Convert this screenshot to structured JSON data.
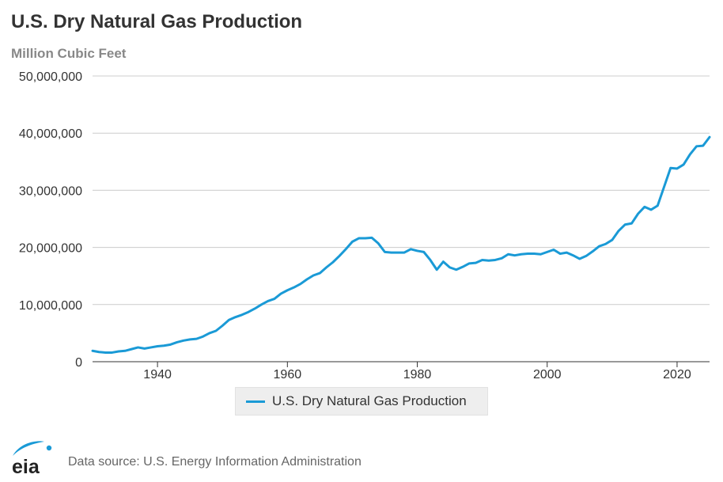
{
  "title": "U.S. Dry Natural Gas Production",
  "subtitle": "Million Cubic Feet",
  "source_text": "Data source: U.S. Energy Information Administration",
  "logo_text": "eia",
  "colors": {
    "series": "#1a9ad6",
    "grid": "#cccccc",
    "axis": "#333333",
    "logo": "#1a9ad6"
  },
  "chart_data": {
    "type": "line",
    "title": "U.S. Dry Natural Gas Production",
    "ylabel": "Million Cubic Feet",
    "xlim": [
      1930,
      2025
    ],
    "ylim": [
      0,
      50000000
    ],
    "yticks": [
      0,
      10000000,
      20000000,
      30000000,
      40000000,
      50000000
    ],
    "ytick_labels": [
      "0",
      "10,000,000",
      "20,000,000",
      "30,000,000",
      "40,000,000",
      "50,000,000"
    ],
    "xticks": [
      1940,
      1960,
      1980,
      2000,
      2020
    ],
    "xtick_labels": [
      "1940",
      "1960",
      "1980",
      "2000",
      "2020"
    ],
    "grid": true,
    "legend_position": "bottom-center",
    "series": [
      {
        "name": "U.S. Dry Natural Gas Production",
        "x": [
          1930,
          1931,
          1932,
          1933,
          1934,
          1935,
          1936,
          1937,
          1938,
          1939,
          1940,
          1941,
          1942,
          1943,
          1944,
          1945,
          1946,
          1947,
          1948,
          1949,
          1950,
          1951,
          1952,
          1953,
          1954,
          1955,
          1956,
          1957,
          1958,
          1959,
          1960,
          1961,
          1962,
          1963,
          1964,
          1965,
          1966,
          1967,
          1968,
          1969,
          1970,
          1971,
          1972,
          1973,
          1974,
          1975,
          1976,
          1977,
          1978,
          1979,
          1980,
          1981,
          1982,
          1983,
          1984,
          1985,
          1986,
          1987,
          1988,
          1989,
          1990,
          1991,
          1992,
          1993,
          1994,
          1995,
          1996,
          1997,
          1998,
          1999,
          2000,
          2001,
          2002,
          2003,
          2004,
          2005,
          2006,
          2007,
          2008,
          2009,
          2010,
          2011,
          2012,
          2013,
          2014,
          2015,
          2016,
          2017,
          2018,
          2019,
          2020,
          2021,
          2022,
          2023,
          2024,
          2025
        ],
        "values": [
          1900000,
          1700000,
          1600000,
          1600000,
          1800000,
          1900000,
          2200000,
          2500000,
          2300000,
          2500000,
          2700000,
          2800000,
          3000000,
          3400000,
          3700000,
          3900000,
          4000000,
          4400000,
          5000000,
          5400000,
          6300000,
          7300000,
          7800000,
          8200000,
          8700000,
          9300000,
          10000000,
          10600000,
          11000000,
          11900000,
          12500000,
          13000000,
          13600000,
          14400000,
          15100000,
          15500000,
          16500000,
          17400000,
          18500000,
          19700000,
          21000000,
          21600000,
          21600000,
          21700000,
          20700000,
          19200000,
          19100000,
          19100000,
          19100000,
          19700000,
          19400000,
          19200000,
          17800000,
          16100000,
          17500000,
          16500000,
          16100000,
          16600000,
          17200000,
          17300000,
          17800000,
          17700000,
          17800000,
          18100000,
          18800000,
          18600000,
          18800000,
          18900000,
          18900000,
          18800000,
          19200000,
          19600000,
          18900000,
          19100000,
          18600000,
          18000000,
          18500000,
          19300000,
          20200000,
          20600000,
          21300000,
          22900000,
          24000000,
          24200000,
          25900000,
          27100000,
          26600000,
          27300000,
          30600000,
          33900000,
          33800000,
          34500000,
          36300000,
          37700000,
          37800000,
          39300000
        ]
      }
    ]
  }
}
